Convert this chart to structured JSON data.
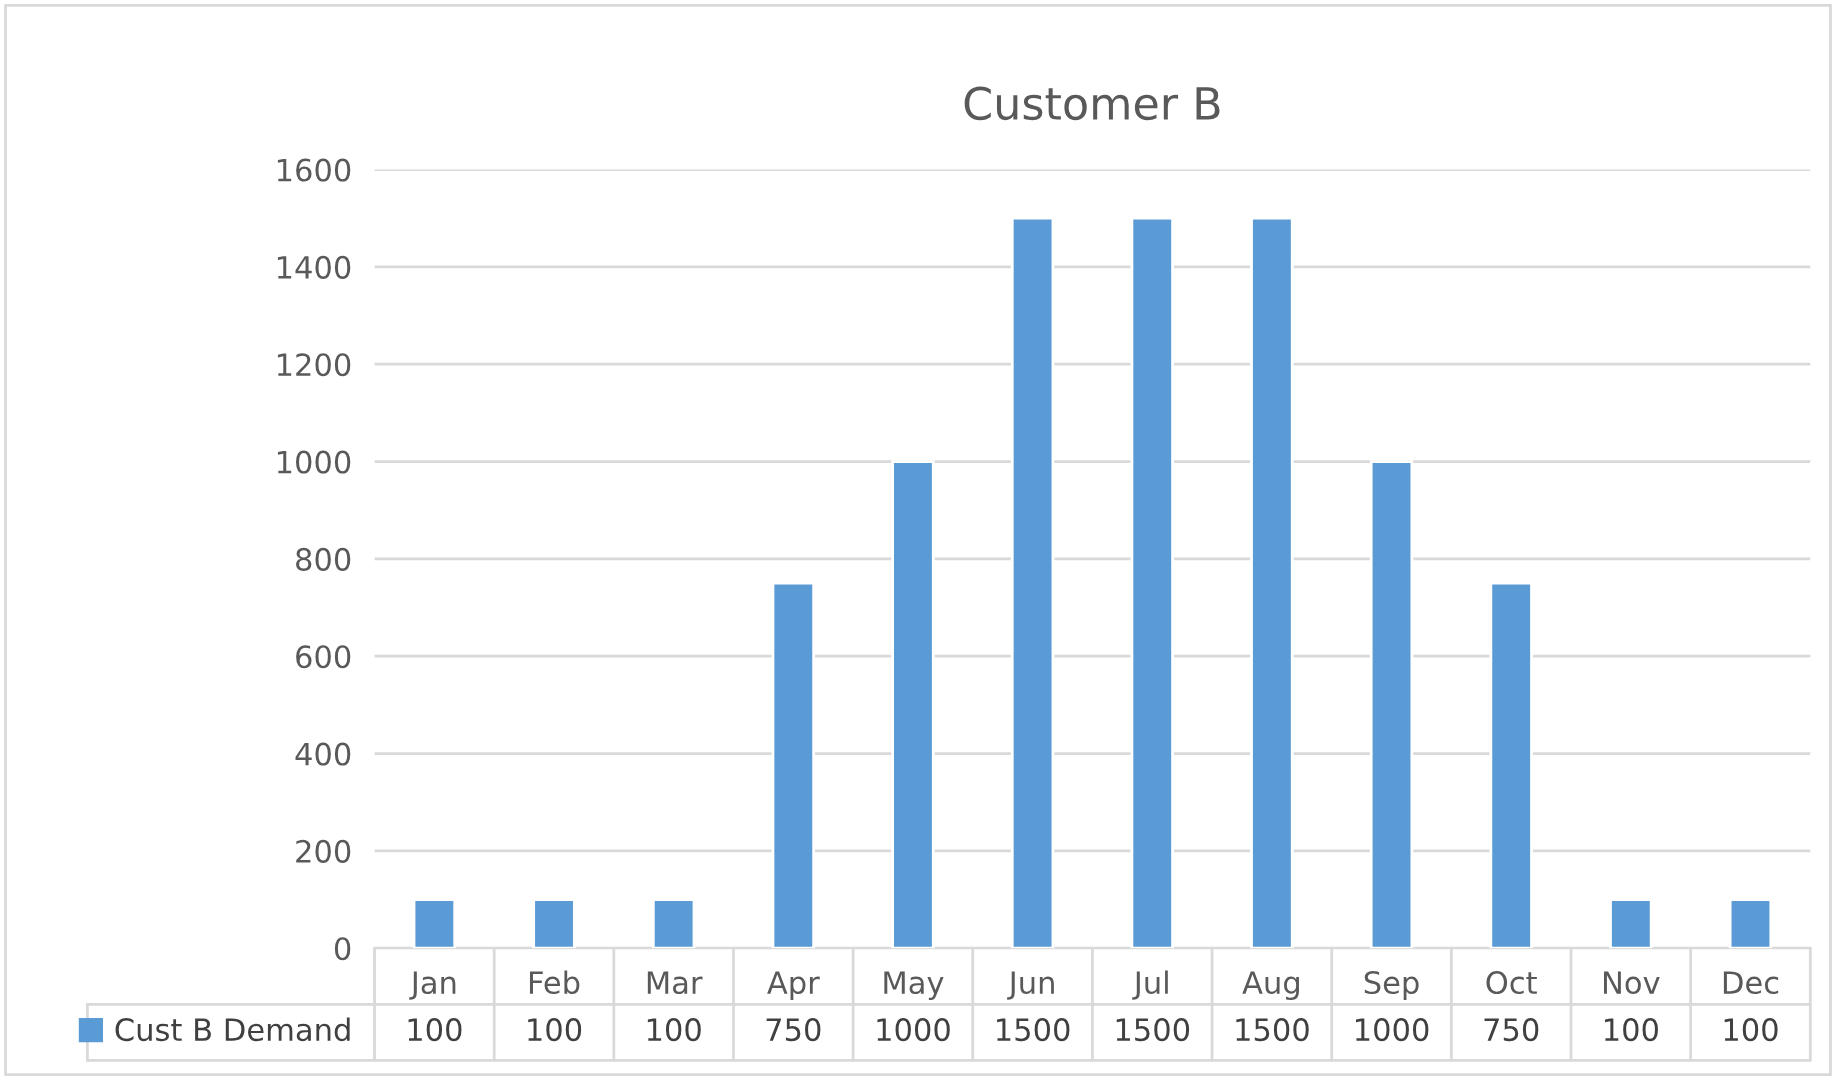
{
  "chart_data": {
    "type": "bar",
    "title": "Customer B",
    "categories": [
      "Jan",
      "Feb",
      "Mar",
      "Apr",
      "May",
      "Jun",
      "Jul",
      "Aug",
      "Sep",
      "Oct",
      "Nov",
      "Dec"
    ],
    "series": [
      {
        "name": "Cust B Demand",
        "color": "#5b9bd5",
        "values": [
          100,
          100,
          100,
          750,
          1000,
          1500,
          1500,
          1500,
          1000,
          750,
          100,
          100
        ]
      }
    ],
    "ylim": [
      0,
      1600
    ],
    "yticks": [
      0,
      200,
      400,
      600,
      800,
      1000,
      1200,
      1400,
      1600
    ],
    "grid": "y",
    "data_labels": true,
    "legend": "bottom left"
  }
}
